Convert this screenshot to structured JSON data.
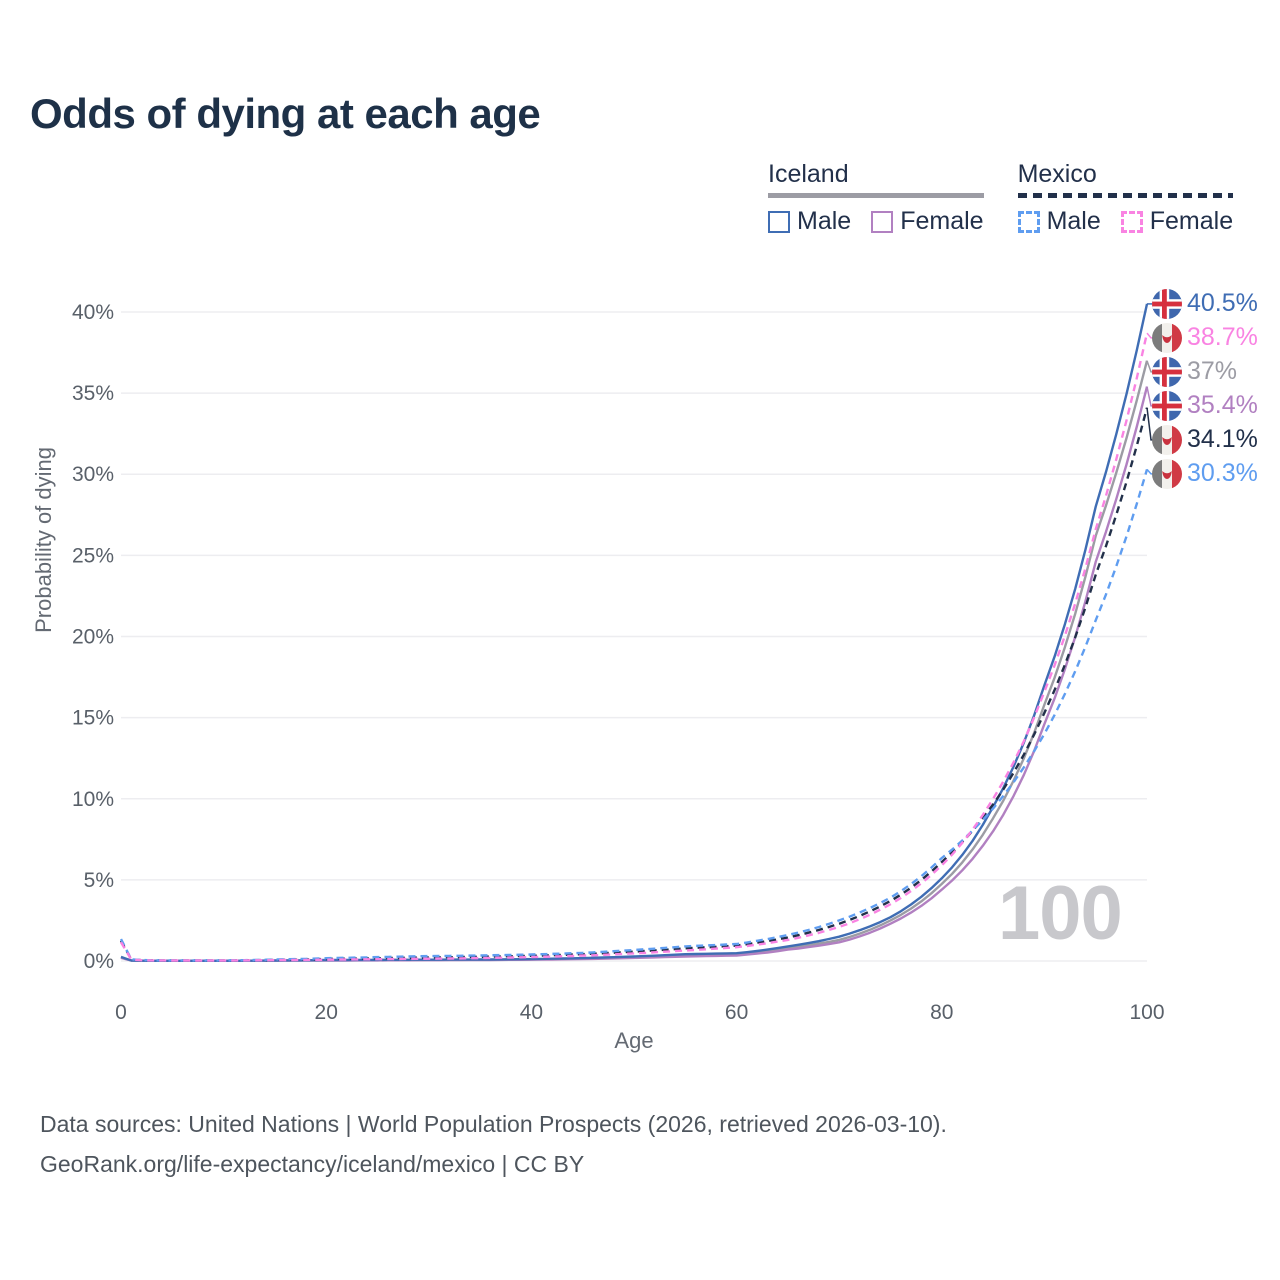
{
  "title": "Odds of dying at each age",
  "legend": {
    "groups": [
      {
        "country": "Iceland",
        "line_style": "solid",
        "underline_color": "#9c9ca4",
        "items": [
          {
            "label": "Male",
            "color": "#3f6db4",
            "dash": false
          },
          {
            "label": "Female",
            "color": "#b180c1",
            "dash": false
          }
        ]
      },
      {
        "country": "Mexico",
        "line_style": "dashed",
        "underline_color": "#22304a",
        "items": [
          {
            "label": "Male",
            "color": "#5f9df0",
            "dash": true
          },
          {
            "label": "Female",
            "color": "#f983e2",
            "dash": true
          }
        ]
      }
    ]
  },
  "chart_data": {
    "type": "line",
    "title": "Odds of dying at each age",
    "xlabel": "Age",
    "ylabel": "Probability of dying",
    "xlim": [
      0,
      100
    ],
    "ylim": [
      0,
      42
    ],
    "grid": "horizontal-only",
    "legend_position": "top-right",
    "watermark": "100",
    "x_ticks": [
      0,
      20,
      40,
      60,
      80,
      100
    ],
    "y_ticks": [
      "0%",
      "5%",
      "10%",
      "15%",
      "20%",
      "25%",
      "30%",
      "35%",
      "40%"
    ],
    "x": [
      0,
      1,
      2,
      3,
      5,
      10,
      15,
      20,
      25,
      30,
      35,
      40,
      45,
      50,
      55,
      60,
      65,
      70,
      75,
      80,
      85,
      90,
      95,
      100
    ],
    "series": [
      {
        "id": "iceland-both",
        "name": "Iceland (both sexes)",
        "country": "Iceland",
        "flag": "iceland",
        "color": "#9c9ca4",
        "dash": false,
        "end_value": 37.0,
        "end_label": "37%",
        "values": [
          0.22,
          0.028,
          0.018,
          0.013,
          0.011,
          0.011,
          0.025,
          0.045,
          0.055,
          0.065,
          0.075,
          0.1,
          0.15,
          0.24,
          0.36,
          0.4,
          0.8,
          1.3,
          2.5,
          4.75,
          8.8,
          15.8,
          26.2,
          37.0
        ]
      },
      {
        "id": "iceland-female",
        "name": "Iceland Female",
        "country": "Iceland",
        "flag": "iceland",
        "color": "#b180c1",
        "dash": false,
        "end_value": 35.4,
        "end_label": "35.4%",
        "values": [
          0.2,
          0.025,
          0.015,
          0.012,
          0.01,
          0.01,
          0.02,
          0.03,
          0.04,
          0.05,
          0.06,
          0.08,
          0.12,
          0.19,
          0.28,
          0.34,
          0.7,
          1.15,
          2.3,
          4.4,
          8.0,
          14.6,
          24.6,
          35.4
        ]
      },
      {
        "id": "iceland-male",
        "name": "Iceland Male",
        "country": "Iceland",
        "flag": "iceland",
        "color": "#3f6db4",
        "dash": false,
        "end_value": 40.5,
        "end_label": "40.5%",
        "values": [
          0.25,
          0.03,
          0.02,
          0.015,
          0.012,
          0.012,
          0.03,
          0.06,
          0.07,
          0.08,
          0.09,
          0.12,
          0.18,
          0.28,
          0.42,
          0.48,
          0.9,
          1.5,
          2.7,
          5.1,
          9.5,
          17.0,
          28.0,
          40.5
        ]
      },
      {
        "id": "mexico-both",
        "name": "Mexico (both sexes)",
        "country": "Mexico",
        "flag": "mexico",
        "color": "#22304a",
        "dash": true,
        "end_value": 34.1,
        "end_label": "34.1%",
        "values": [
          1.25,
          0.095,
          0.055,
          0.042,
          0.032,
          0.032,
          0.07,
          0.125,
          0.17,
          0.22,
          0.26,
          0.32,
          0.42,
          0.58,
          0.78,
          0.95,
          1.45,
          2.3,
          3.7,
          6.1,
          9.65,
          15.3,
          23.8,
          34.1
        ]
      },
      {
        "id": "mexico-male",
        "name": "Mexico Male",
        "country": "Mexico",
        "flag": "mexico",
        "color": "#5f9df0",
        "dash": true,
        "end_value": 30.3,
        "end_label": "30.3%",
        "values": [
          1.35,
          0.1,
          0.06,
          0.045,
          0.035,
          0.035,
          0.09,
          0.17,
          0.24,
          0.3,
          0.34,
          0.4,
          0.5,
          0.68,
          0.9,
          1.05,
          1.6,
          2.5,
          3.9,
          6.35,
          9.4,
          14.0,
          21.0,
          30.3
        ]
      },
      {
        "id": "mexico-female",
        "name": "Mexico Female",
        "country": "Mexico",
        "flag": "mexico",
        "color": "#f983e2",
        "dash": true,
        "end_value": 38.7,
        "end_label": "38.7%",
        "values": [
          1.15,
          0.09,
          0.05,
          0.04,
          0.03,
          0.028,
          0.055,
          0.08,
          0.11,
          0.14,
          0.18,
          0.24,
          0.33,
          0.47,
          0.65,
          0.85,
          1.3,
          2.1,
          3.5,
          5.9,
          10.0,
          16.6,
          26.6,
          38.7
        ]
      }
    ]
  },
  "footer": {
    "line1": "Data sources: United Nations | World Population Prospects (2026, retrieved 2026-03-10).",
    "line2": "GeoRank.org/life-expectancy/iceland/mexico | CC BY"
  }
}
